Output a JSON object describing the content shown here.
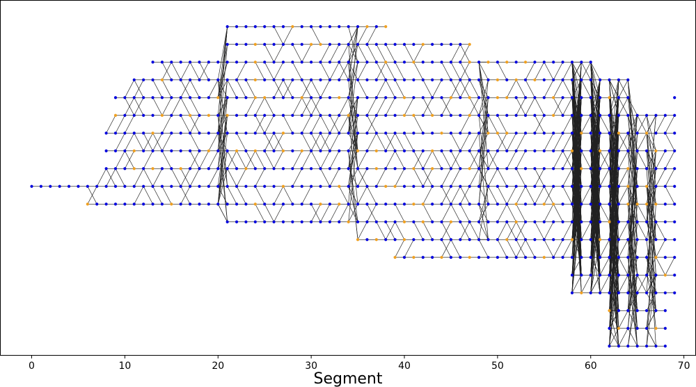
{
  "chart_data": {
    "type": "scatter",
    "title": "",
    "xlabel": "Segment",
    "ylabel": "",
    "xlim": [
      -3.4,
      71.3
    ],
    "ylim": [
      -9.5,
      10.5
    ],
    "xticks": [
      0,
      10,
      20,
      30,
      40,
      50,
      60,
      70
    ],
    "yticks_visible": false,
    "grid": false,
    "legend": "none",
    "colors": {
      "blue_node": "#0000dd",
      "orange_node": "#f0a020",
      "edge": "#222222",
      "frame": "#000000"
    },
    "node_series": [
      {
        "color_key": "blue_node",
        "description_rows": [
          {
            "x_from": 0,
            "x_to": 5,
            "y": 0
          },
          {
            "x_from": 6,
            "x_to": 20,
            "y": -1
          },
          {
            "x_from": 6,
            "x_to": 20,
            "y": 0
          },
          {
            "x_from": 8,
            "x_to": 20,
            "y": 1
          },
          {
            "x_from": 8,
            "x_to": 20,
            "y": 2
          },
          {
            "x_from": 8,
            "x_to": 20,
            "y": 3
          },
          {
            "x_from": 9,
            "x_to": 20,
            "y": 4
          },
          {
            "x_from": 9,
            "x_to": 20,
            "y": 5
          },
          {
            "x_from": 11,
            "x_to": 20,
            "y": 6
          },
          {
            "x_from": 13,
            "x_to": 20,
            "y": 7
          },
          {
            "x_from": 21,
            "x_to": 57,
            "y": -2
          },
          {
            "x_from": 21,
            "x_to": 57,
            "y": -1
          },
          {
            "x_from": 21,
            "x_to": 57,
            "y": 0
          },
          {
            "x_from": 21,
            "x_to": 57,
            "y": 1
          },
          {
            "x_from": 21,
            "x_to": 57,
            "y": 2
          },
          {
            "x_from": 21,
            "x_to": 57,
            "y": 3
          },
          {
            "x_from": 21,
            "x_to": 57,
            "y": 4
          },
          {
            "x_from": 21,
            "x_to": 57,
            "y": 5
          },
          {
            "x_from": 21,
            "x_to": 57,
            "y": 6
          },
          {
            "x_from": 21,
            "x_to": 57,
            "y": 7
          },
          {
            "x_from": 21,
            "x_to": 47,
            "y": 8
          },
          {
            "x_from": 21,
            "x_to": 38,
            "y": 9
          },
          {
            "x_from": 35,
            "x_to": 57,
            "y": -3
          },
          {
            "x_from": 39,
            "x_to": 57,
            "y": -4
          }
        ]
      },
      {
        "color_key": "orange_node",
        "description": "interior nodes of parallel sub-paths"
      }
    ]
  }
}
